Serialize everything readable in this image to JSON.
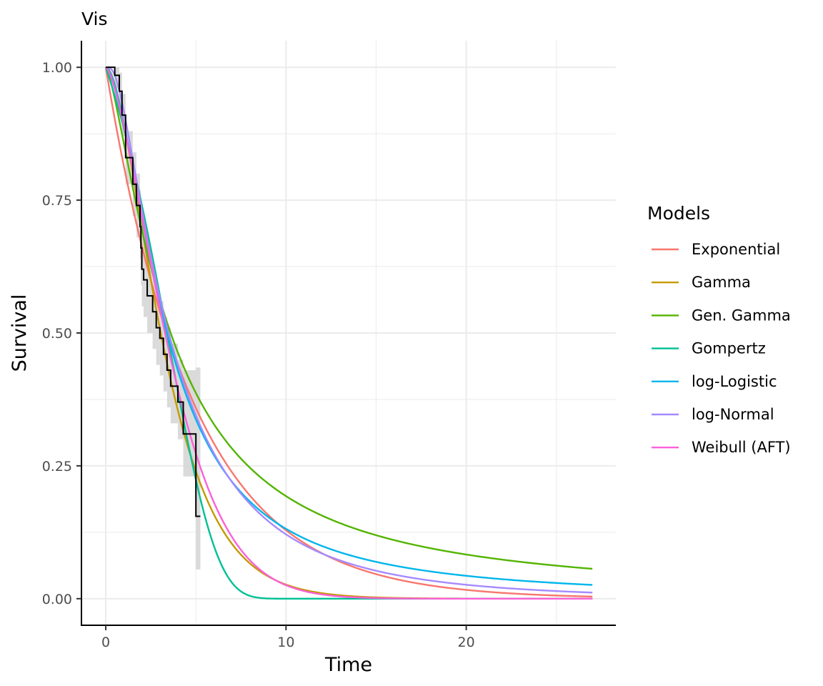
{
  "chart_data": {
    "type": "line",
    "title": "Vis",
    "xlabel": "Time",
    "ylabel": "Survival",
    "xlim": [
      -1.35,
      28.3
    ],
    "ylim": [
      -0.05,
      1.05
    ],
    "x_ticks": [
      0,
      10,
      20
    ],
    "x_tick_labels": [
      "0",
      "10",
      "20"
    ],
    "y_ticks": [
      0,
      0.25,
      0.5,
      0.75,
      1.0
    ],
    "y_tick_labels": [
      "0.00",
      "0.25",
      "0.50",
      "0.75",
      "1.00"
    ],
    "grid": true,
    "legend": {
      "title": "Models",
      "position": "right"
    },
    "km": {
      "color": "#000000",
      "ci_color": "#d3d3d3",
      "steps": [
        {
          "t": 0,
          "s": 1.0,
          "lo": 1.0,
          "hi": 1.0
        },
        {
          "t": 0.5,
          "s": 0.985,
          "lo": 0.96,
          "hi": 1.0
        },
        {
          "t": 0.75,
          "s": 0.955,
          "lo": 0.92,
          "hi": 0.99
        },
        {
          "t": 0.9,
          "s": 0.91,
          "lo": 0.87,
          "hi": 0.95
        },
        {
          "t": 1.1,
          "s": 0.83,
          "lo": 0.78,
          "hi": 0.88
        },
        {
          "t": 1.5,
          "s": 0.78,
          "lo": 0.72,
          "hi": 0.84
        },
        {
          "t": 1.7,
          "s": 0.74,
          "lo": 0.68,
          "hi": 0.8
        },
        {
          "t": 1.9,
          "s": 0.7,
          "lo": 0.64,
          "hi": 0.77
        },
        {
          "t": 1.95,
          "s": 0.66,
          "lo": 0.59,
          "hi": 0.73
        },
        {
          "t": 2.0,
          "s": 0.62,
          "lo": 0.55,
          "hi": 0.69
        },
        {
          "t": 2.1,
          "s": 0.6,
          "lo": 0.53,
          "hi": 0.67
        },
        {
          "t": 2.3,
          "s": 0.57,
          "lo": 0.5,
          "hi": 0.64
        },
        {
          "t": 2.6,
          "s": 0.54,
          "lo": 0.47,
          "hi": 0.61
        },
        {
          "t": 2.8,
          "s": 0.51,
          "lo": 0.44,
          "hi": 0.58
        },
        {
          "t": 3.0,
          "s": 0.49,
          "lo": 0.42,
          "hi": 0.56
        },
        {
          "t": 3.2,
          "s": 0.46,
          "lo": 0.39,
          "hi": 0.53
        },
        {
          "t": 3.4,
          "s": 0.43,
          "lo": 0.36,
          "hi": 0.51
        },
        {
          "t": 3.6,
          "s": 0.4,
          "lo": 0.33,
          "hi": 0.48
        },
        {
          "t": 4.0,
          "s": 0.37,
          "lo": 0.3,
          "hi": 0.45
        },
        {
          "t": 4.3,
          "s": 0.31,
          "lo": 0.23,
          "hi": 0.43
        },
        {
          "t": 5.0,
          "s": 0.155,
          "lo": 0.055,
          "hi": 0.435
        },
        {
          "t": 5.25,
          "s": 0.155,
          "lo": 0.055,
          "hi": 0.435
        }
      ]
    },
    "series": [
      {
        "name": "Exponential",
        "color": "#F8766D",
        "model": "exponential",
        "params": {
          "rate": 0.205
        }
      },
      {
        "name": "Gamma",
        "color": "#C49A00",
        "model": "gamma",
        "params": {
          "shape": 2.0,
          "rate": 0.55
        }
      },
      {
        "name": "Gen. Gamma",
        "color": "#53B400",
        "model": "loglogistic",
        "params": {
          "alpha": 3.6,
          "beta": 1.4
        }
      },
      {
        "name": "Gompertz",
        "color": "#00C094",
        "model": "gompertz",
        "params": {
          "b": 0.1,
          "a": 0.38
        }
      },
      {
        "name": "log-Logistic",
        "color": "#00B6EB",
        "model": "loglogistic",
        "params": {
          "alpha": 3.4,
          "beta": 1.75
        }
      },
      {
        "name": "log-Normal",
        "color": "#A58AFF",
        "model": "lognormal",
        "params": {
          "mu": 1.25,
          "sigma": 0.9
        }
      },
      {
        "name": "Weibull (AFT)",
        "color": "#FB61D7",
        "model": "weibull",
        "params": {
          "lambda": 4.2,
          "k": 1.5
        }
      }
    ],
    "x_max": 27
  }
}
